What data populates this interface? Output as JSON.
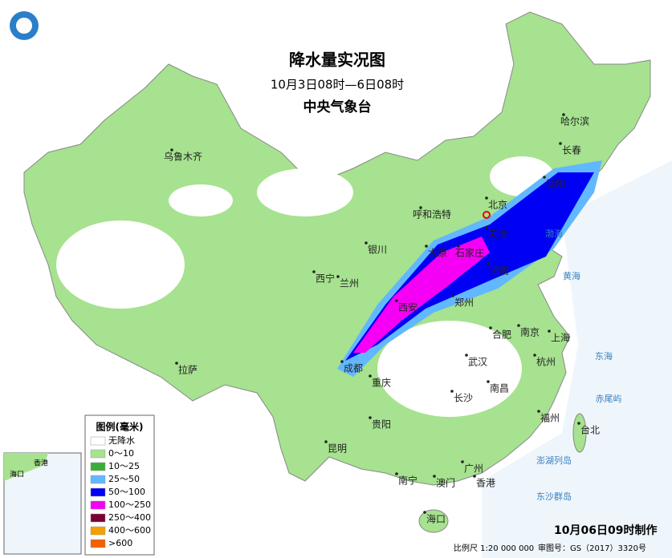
{
  "header": {
    "title": "降水量实况图",
    "subtitle": "10月3日08时—6日08时",
    "agency": "中央气象台"
  },
  "cities": [
    "乌鲁木齐",
    "呼和浩特",
    "北京",
    "天津",
    "石家庄",
    "太原",
    "银川",
    "兰州",
    "西宁",
    "西安",
    "郑州",
    "济南",
    "沈阳",
    "长春",
    "哈尔滨",
    "合肥",
    "南京",
    "上海",
    "杭州",
    "武汉",
    "成都",
    "重庆",
    "长沙",
    "南昌",
    "福州",
    "台北",
    "贵阳",
    "昆明",
    "拉萨",
    "南宁",
    "广州",
    "澳门",
    "香港",
    "海口"
  ],
  "seas": [
    "渤海",
    "黄海",
    "东海",
    "赤尾屿",
    "澎湖列岛",
    "东沙群岛"
  ],
  "legend": {
    "title": "图例(毫米)",
    "items": [
      {
        "label": "无降水",
        "color": "#ffffff"
      },
      {
        "label": "0～10",
        "color": "#a6e28f"
      },
      {
        "label": "10～25",
        "color": "#3aae3a"
      },
      {
        "label": "25～50",
        "color": "#62b8ff"
      },
      {
        "label": "50～100",
        "color": "#0000f5"
      },
      {
        "label": "100～250",
        "color": "#f500f5"
      },
      {
        "label": "250～400",
        "color": "#7a0030"
      },
      {
        "label": "400～600",
        "color": "#f5a000"
      },
      {
        "label": ">600",
        "color": "#f56000"
      }
    ]
  },
  "inset": {
    "labels": [
      "香港",
      "海口"
    ]
  },
  "footer": {
    "scale": "比例尺 1:20 000 000",
    "approval": "审图号：GS（2017）3320号",
    "made": "10月06日09时制作"
  }
}
